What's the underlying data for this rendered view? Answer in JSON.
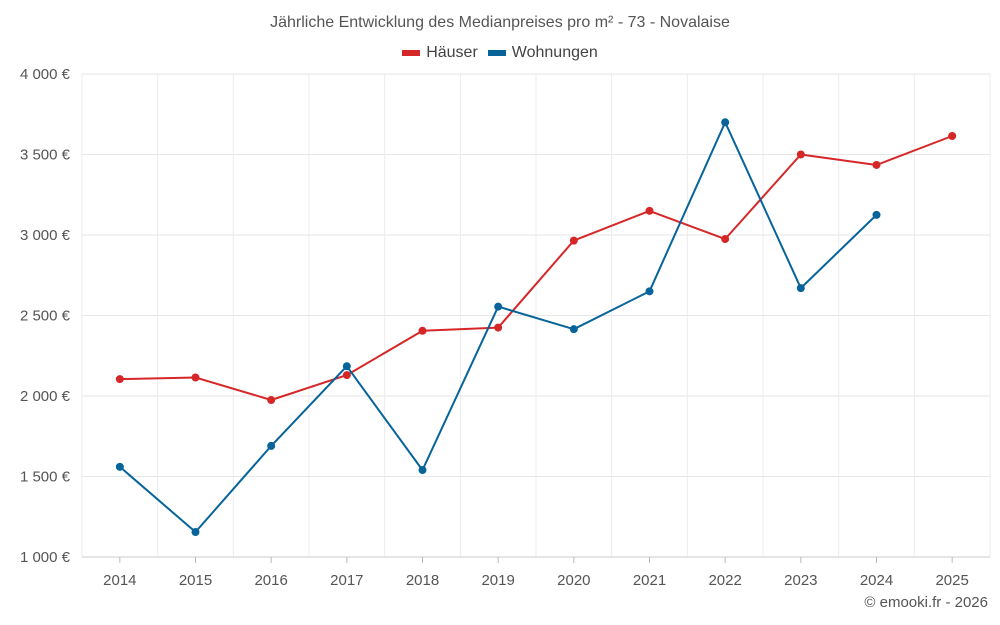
{
  "chart_data": {
    "type": "line",
    "title": "Jährliche Entwicklung des Medianpreises pro m² - 73 - Novalaise",
    "xlabel": "",
    "ylabel": "",
    "categories": [
      "2014",
      "2015",
      "2016",
      "2017",
      "2018",
      "2019",
      "2020",
      "2021",
      "2022",
      "2023",
      "2024",
      "2025"
    ],
    "ylim": [
      1000,
      4000
    ],
    "yticks": [
      1000,
      1500,
      2000,
      2500,
      3000,
      3500,
      4000
    ],
    "ytick_labels": [
      "1 000 €",
      "1 500 €",
      "2 000 €",
      "2 500 €",
      "3 000 €",
      "3 500 €",
      "4 000 €"
    ],
    "grid": true,
    "legend_position": "top-center",
    "series": [
      {
        "name": "Häuser",
        "color": "#d62728",
        "values": [
          2105,
          2115,
          1975,
          2130,
          2405,
          2425,
          2965,
          3150,
          2975,
          3500,
          3435,
          3615
        ]
      },
      {
        "name": "Wohnungen",
        "color": "#07649a",
        "values": [
          1560,
          1155,
          1690,
          2185,
          1540,
          2555,
          2415,
          2650,
          3700,
          2670,
          3125,
          null
        ]
      }
    ]
  },
  "credit": "© emooki.fr - 2026"
}
